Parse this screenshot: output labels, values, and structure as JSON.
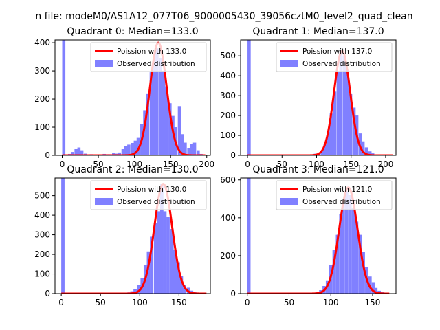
{
  "figure": {
    "suptitle": "n file: modeM0/AS1A12_077T06_9000005430_39056cztM0_level2_quad_clean"
  },
  "colors": {
    "bars": "#8080ff",
    "curve": "#ff0000",
    "curve_light": "#ff8080",
    "axes": "#000000",
    "background": "#ffffff"
  },
  "chart_data": [
    {
      "type": "bar",
      "title": "Quadrant 0: Median=133.0",
      "xlim": [
        -10,
        205
      ],
      "ylim": [
        0,
        410
      ],
      "xticks": [
        0,
        50,
        100,
        150,
        200
      ],
      "yticks": [
        0,
        100,
        200,
        300,
        400
      ],
      "legend": {
        "placement": "top-right",
        "entries": [
          "Poission with 133.0",
          "Observed distribution"
        ]
      },
      "series": [
        {
          "name": "Observed distribution",
          "bin_width": 4.35,
          "bins": [
            {
              "x": 0,
              "count": 410
            },
            {
              "x": 4,
              "count": 3
            },
            {
              "x": 8,
              "count": 5
            },
            {
              "x": 12,
              "count": 12
            },
            {
              "x": 17,
              "count": 22
            },
            {
              "x": 21,
              "count": 28
            },
            {
              "x": 25,
              "count": 18
            },
            {
              "x": 30,
              "count": 6
            },
            {
              "x": 34,
              "count": 3
            },
            {
              "x": 38,
              "count": 4
            },
            {
              "x": 43,
              "count": 2
            },
            {
              "x": 47,
              "count": 3
            },
            {
              "x": 51,
              "count": 3
            },
            {
              "x": 56,
              "count": 5
            },
            {
              "x": 60,
              "count": 4
            },
            {
              "x": 64,
              "count": 4
            },
            {
              "x": 69,
              "count": 8
            },
            {
              "x": 73,
              "count": 6
            },
            {
              "x": 77,
              "count": 10
            },
            {
              "x": 82,
              "count": 22
            },
            {
              "x": 86,
              "count": 32
            },
            {
              "x": 90,
              "count": 38
            },
            {
              "x": 95,
              "count": 44
            },
            {
              "x": 99,
              "count": 52
            },
            {
              "x": 103,
              "count": 62
            },
            {
              "x": 108,
              "count": 110
            },
            {
              "x": 112,
              "count": 160
            },
            {
              "x": 116,
              "count": 220
            },
            {
              "x": 121,
              "count": 295
            },
            {
              "x": 125,
              "count": 340
            },
            {
              "x": 129,
              "count": 380
            },
            {
              "x": 134,
              "count": 345
            },
            {
              "x": 138,
              "count": 300
            },
            {
              "x": 142,
              "count": 245
            },
            {
              "x": 147,
              "count": 185
            },
            {
              "x": 151,
              "count": 140
            },
            {
              "x": 155,
              "count": 100
            },
            {
              "x": 160,
              "count": 175
            },
            {
              "x": 164,
              "count": 75
            },
            {
              "x": 168,
              "count": 45
            },
            {
              "x": 173,
              "count": 25
            },
            {
              "x": 177,
              "count": 40
            },
            {
              "x": 181,
              "count": 45
            },
            {
              "x": 186,
              "count": 18
            },
            {
              "x": 190,
              "count": 5
            }
          ]
        },
        {
          "name": "Poission with 133.0",
          "mean": 133.0,
          "peak": 400,
          "x_range": [
            0,
            198
          ]
        }
      ]
    },
    {
      "type": "bar",
      "title": "Quadrant 1: Median=137.0",
      "xlim": [
        -10,
        215
      ],
      "ylim": [
        0,
        580
      ],
      "xticks": [
        0,
        50,
        100,
        150,
        200
      ],
      "yticks": [
        0,
        100,
        200,
        300,
        400,
        500
      ],
      "legend": {
        "placement": "top-right",
        "entries": [
          "Poission with 137.0",
          "Observed distribution"
        ]
      },
      "series": [
        {
          "name": "Observed distribution",
          "bin_width": 4.6,
          "bins": [
            {
              "x": 0,
              "count": 580
            },
            {
              "x": 92,
              "count": 4
            },
            {
              "x": 96,
              "count": 8
            },
            {
              "x": 101,
              "count": 14
            },
            {
              "x": 106,
              "count": 25
            },
            {
              "x": 110,
              "count": 55
            },
            {
              "x": 115,
              "count": 120
            },
            {
              "x": 119,
              "count": 210
            },
            {
              "x": 124,
              "count": 320
            },
            {
              "x": 129,
              "count": 420
            },
            {
              "x": 133,
              "count": 520
            },
            {
              "x": 138,
              "count": 500
            },
            {
              "x": 142,
              "count": 430
            },
            {
              "x": 147,
              "count": 310
            },
            {
              "x": 152,
              "count": 240
            },
            {
              "x": 156,
              "count": 200
            },
            {
              "x": 161,
              "count": 110
            },
            {
              "x": 165,
              "count": 70
            },
            {
              "x": 170,
              "count": 40
            },
            {
              "x": 175,
              "count": 20
            },
            {
              "x": 179,
              "count": 10
            },
            {
              "x": 184,
              "count": 5
            },
            {
              "x": 188,
              "count": 3
            }
          ]
        },
        {
          "name": "Poission with 137.0",
          "mean": 137.0,
          "peak": 525,
          "x_range": [
            0,
            210
          ]
        }
      ]
    },
    {
      "type": "bar",
      "title": "Quadrant 2: Median=130.0",
      "xlim": [
        -8,
        190
      ],
      "ylim": [
        0,
        590
      ],
      "xticks": [
        0,
        50,
        100,
        150
      ],
      "yticks": [
        0,
        100,
        200,
        300,
        400,
        500
      ],
      "legend": {
        "placement": "top-right",
        "entries": [
          "Poission with 130.0",
          "Observed distribution"
        ]
      },
      "series": [
        {
          "name": "Observed distribution",
          "bin_width": 4.2,
          "bins": [
            {
              "x": 0,
              "count": 590
            },
            {
              "x": 80,
              "count": 3
            },
            {
              "x": 84,
              "count": 6
            },
            {
              "x": 88,
              "count": 12
            },
            {
              "x": 92,
              "count": 22
            },
            {
              "x": 97,
              "count": 45
            },
            {
              "x": 101,
              "count": 80
            },
            {
              "x": 105,
              "count": 145
            },
            {
              "x": 109,
              "count": 215
            },
            {
              "x": 113,
              "count": 290
            },
            {
              "x": 118,
              "count": 360
            },
            {
              "x": 122,
              "count": 420
            },
            {
              "x": 126,
              "count": 560
            },
            {
              "x": 130,
              "count": 420
            },
            {
              "x": 134,
              "count": 390
            },
            {
              "x": 139,
              "count": 330
            },
            {
              "x": 143,
              "count": 225
            },
            {
              "x": 147,
              "count": 160
            },
            {
              "x": 151,
              "count": 90
            },
            {
              "x": 155,
              "count": 45
            },
            {
              "x": 160,
              "count": 30
            },
            {
              "x": 164,
              "count": 15
            },
            {
              "x": 168,
              "count": 8
            },
            {
              "x": 172,
              "count": 4
            },
            {
              "x": 176,
              "count": 2
            }
          ]
        },
        {
          "name": "Poission with 130.0",
          "mean": 130.0,
          "peak": 560,
          "x_range": [
            0,
            185
          ]
        }
      ]
    },
    {
      "type": "bar",
      "title": "Quadrant 3: Median=121.0",
      "xlim": [
        -8,
        178
      ],
      "ylim": [
        0,
        610
      ],
      "xticks": [
        0,
        50,
        100,
        150
      ],
      "yticks": [
        0,
        200,
        400,
        600
      ],
      "legend": {
        "placement": "top-right",
        "entries": [
          "Poission with 121.0",
          "Observed distribution"
        ]
      },
      "series": [
        {
          "name": "Observed distribution",
          "bin_width": 3.9,
          "bins": [
            {
              "x": 0,
              "count": 610
            },
            {
              "x": 78,
              "count": 4
            },
            {
              "x": 82,
              "count": 10
            },
            {
              "x": 86,
              "count": 18
            },
            {
              "x": 90,
              "count": 40
            },
            {
              "x": 94,
              "count": 70
            },
            {
              "x": 98,
              "count": 150
            },
            {
              "x": 102,
              "count": 230
            },
            {
              "x": 106,
              "count": 310
            },
            {
              "x": 110,
              "count": 420
            },
            {
              "x": 113,
              "count": 480
            },
            {
              "x": 117,
              "count": 540
            },
            {
              "x": 121,
              "count": 520
            },
            {
              "x": 125,
              "count": 450
            },
            {
              "x": 129,
              "count": 380
            },
            {
              "x": 133,
              "count": 310
            },
            {
              "x": 137,
              "count": 220
            },
            {
              "x": 141,
              "count": 140
            },
            {
              "x": 145,
              "count": 90
            },
            {
              "x": 149,
              "count": 60
            },
            {
              "x": 152,
              "count": 30
            },
            {
              "x": 156,
              "count": 15
            },
            {
              "x": 160,
              "count": 8
            },
            {
              "x": 164,
              "count": 3
            }
          ]
        },
        {
          "name": "Poission with 121.0",
          "mean": 121.0,
          "peak": 560,
          "x_range": [
            0,
            170
          ]
        }
      ]
    }
  ]
}
